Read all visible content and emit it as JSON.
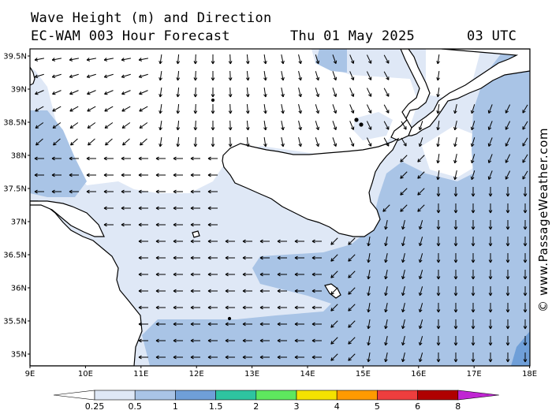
{
  "header": {
    "line1": "Wave Height (m) and Direction",
    "line2_left": "EC-WAM 003 Hour Forecast",
    "line2_date": "Thu 01 May 2025",
    "line2_time": "03 UTC"
  },
  "credit": "© www.PassageWeather.com",
  "axes": {
    "lat_labels": [
      "39.5N",
      "39N",
      "38.5N",
      "38N",
      "37.5N",
      "37N",
      "36.5N",
      "36N",
      "35.5N",
      "35N"
    ],
    "lon_labels": [
      "9E",
      "10E",
      "11E",
      "12E",
      "13E",
      "14E",
      "15E",
      "16E",
      "17E",
      "18E"
    ]
  },
  "legend": {
    "ticks": [
      "0.25",
      "0.5",
      "1",
      "1.5",
      "2",
      "3",
      "4",
      "5",
      "6",
      "8"
    ],
    "colors": [
      "#ffffff",
      "#dfe8f6",
      "#a9c4e6",
      "#6f9fd8",
      "#2ec4a0",
      "#5ee85e",
      "#f4e200",
      "#ff9a00",
      "#ee3e3e",
      "#b00000",
      "#c026d3"
    ]
  },
  "map_colors": {
    "sea_low": "#ffffff",
    "band_025": "#dfe8f6",
    "band_05": "#a9c4e6",
    "land": "#ffffff",
    "coast": "#000000"
  }
}
